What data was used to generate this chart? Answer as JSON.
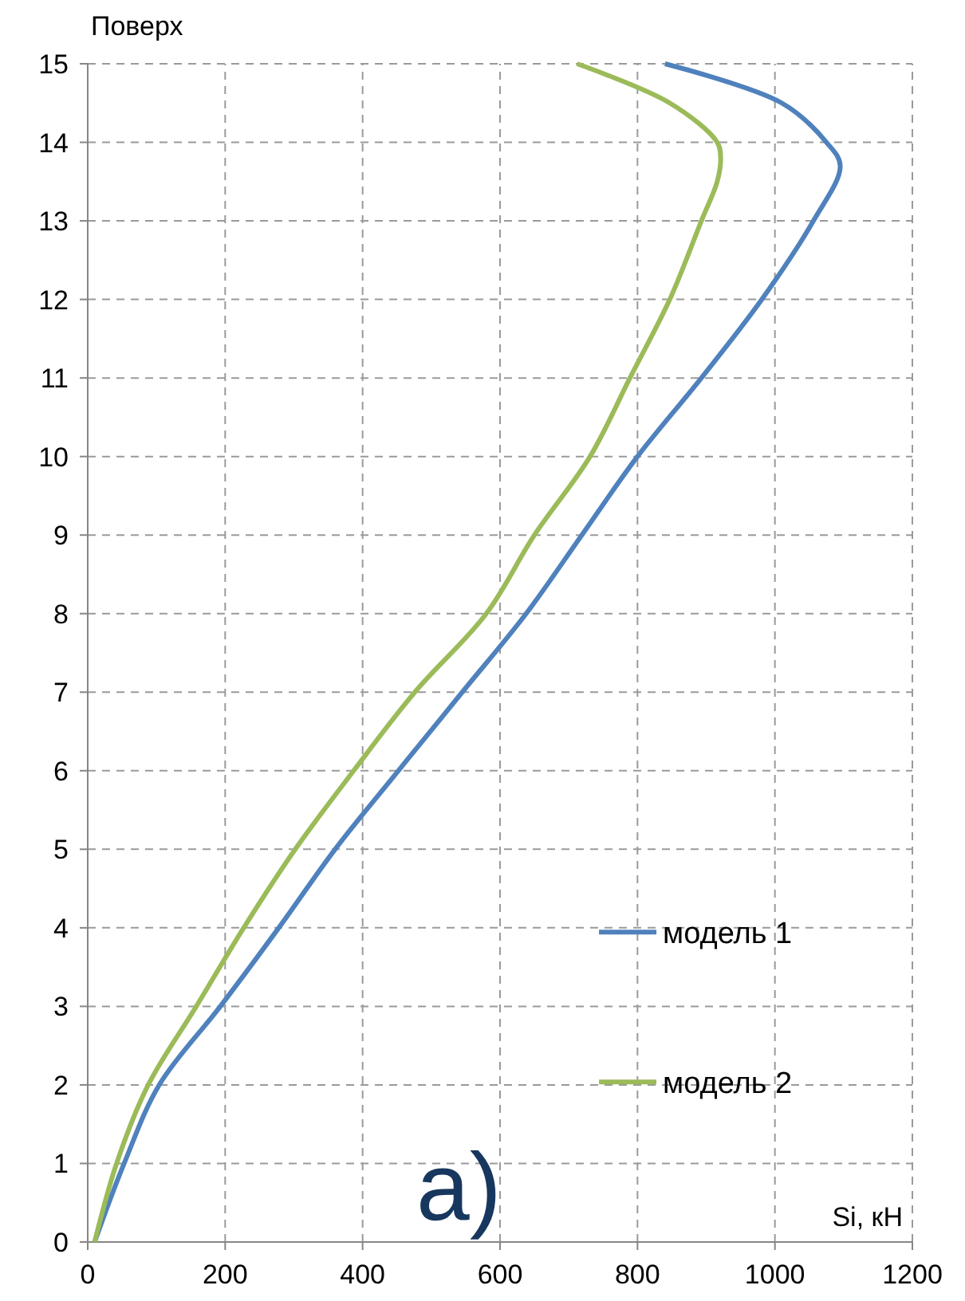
{
  "chart_data": {
    "type": "line",
    "xlabel": "Si, кН",
    "ylabel": "Поверх",
    "annotations": [
      "а)"
    ],
    "xlim": [
      0,
      1200
    ],
    "xticks": [
      0,
      200,
      400,
      600,
      800,
      1000,
      1200
    ],
    "ylim": [
      0,
      15
    ],
    "yticks": [
      0,
      1,
      2,
      3,
      4,
      5,
      6,
      7,
      8,
      9,
      10,
      11,
      12,
      13,
      14,
      15
    ],
    "grid": true,
    "legend": "bottom right",
    "marker": "none",
    "line_style": "solid",
    "series": [
      {
        "name": "модель 1",
        "color": "#4f81bd",
        "x": [
          10,
          53,
          104,
          193,
          278,
          360,
          452,
          545,
          638,
          719,
          800,
          893,
          981,
          1056,
          1095,
          1075,
          1010,
          840
        ],
        "values": [
          0,
          1,
          2,
          3,
          4,
          5,
          6,
          7,
          8,
          9,
          10,
          11,
          12,
          13,
          13.7,
          14,
          14.5,
          15
        ]
      },
      {
        "name": "модель 2",
        "color": "#9bbb59",
        "x": [
          10,
          42,
          88,
          158,
          227,
          302,
          387,
          476,
          580,
          650,
          731,
          789,
          847,
          893,
          916,
          921,
          916,
          847,
          712
        ],
        "values": [
          0,
          1,
          2,
          3,
          4,
          5,
          6,
          7,
          8,
          9,
          10,
          11,
          12,
          13,
          13.5,
          13.8,
          14,
          14.5,
          15
        ]
      }
    ]
  }
}
